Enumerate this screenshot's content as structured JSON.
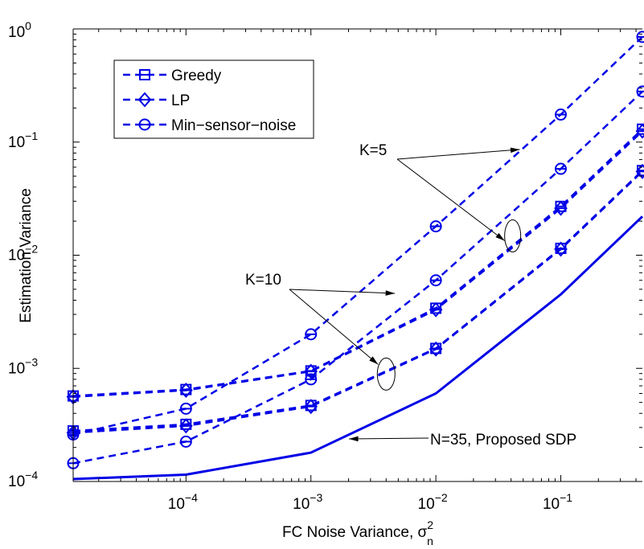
{
  "chart_data": {
    "type": "line",
    "xlabel": "FC Noise Variance, σ",
    "xlabel_sup": "2",
    "xlabel_sub": "n",
    "ylabel": "Estimation Variance",
    "x_scale": "log",
    "y_scale": "log",
    "xlim": [
      1.25e-05,
      0.45
    ],
    "ylim": [
      0.0001,
      1
    ],
    "x_ticks": [
      {
        "value": 0.0001,
        "base": "10",
        "exp": "−4"
      },
      {
        "value": 0.001,
        "base": "10",
        "exp": "−3"
      },
      {
        "value": 0.01,
        "base": "10",
        "exp": "−2"
      },
      {
        "value": 0.1,
        "base": "10",
        "exp": "−1"
      }
    ],
    "y_ticks": [
      {
        "value": 0.0001,
        "base": "10",
        "exp": "−4"
      },
      {
        "value": 0.001,
        "base": "10",
        "exp": "−3"
      },
      {
        "value": 0.01,
        "base": "10",
        "exp": "−2"
      },
      {
        "value": 0.1,
        "base": "10",
        "exp": "−1"
      },
      {
        "value": 1,
        "base": "10",
        "exp": "0"
      }
    ],
    "grid": false,
    "legend_position": "top-left",
    "legend": [
      {
        "label": "Greedy",
        "marker": "square"
      },
      {
        "label": "LP",
        "marker": "diamond"
      },
      {
        "label": "Min−sensor−noise",
        "marker": "circle"
      }
    ],
    "color": "#0000e6",
    "x": [
      1.25e-05,
      0.0001,
      0.001,
      0.01,
      0.1,
      0.45
    ],
    "series": [
      {
        "group": "K=5",
        "method": "Greedy",
        "marker": "square",
        "values": [
          0.00057,
          0.00065,
          0.00095,
          0.0034,
          0.027,
          0.13
        ]
      },
      {
        "group": "K=5",
        "method": "LP",
        "marker": "diamond",
        "values": [
          0.00056,
          0.00064,
          0.00094,
          0.0033,
          0.026,
          0.125
        ]
      },
      {
        "group": "K=5",
        "method": "Min-sensor-noise",
        "marker": "circle",
        "values": [
          0.00026,
          0.00044,
          0.002,
          0.018,
          0.175,
          0.85
        ]
      },
      {
        "group": "K=10",
        "method": "Greedy",
        "marker": "square",
        "values": [
          0.00028,
          0.00032,
          0.00047,
          0.0015,
          0.0115,
          0.056
        ]
      },
      {
        "group": "K=10",
        "method": "LP",
        "marker": "diamond",
        "values": [
          0.00027,
          0.00031,
          0.00046,
          0.00148,
          0.0113,
          0.055
        ]
      },
      {
        "group": "K=10",
        "method": "Min-sensor-noise",
        "marker": "circle",
        "values": [
          0.000145,
          0.000225,
          0.0008,
          0.006,
          0.058,
          0.28
        ]
      },
      {
        "group": "N=35",
        "method": "Proposed SDP",
        "marker": "none",
        "solid": true,
        "values": [
          0.000105,
          0.000115,
          0.00018,
          0.0006,
          0.0045,
          0.022
        ]
      }
    ],
    "annotations": [
      {
        "text": "K=5",
        "ellipse_at": {
          "x": 0.04,
          "y": 0.013
        },
        "targets": [
          {
            "x": 0.047,
            "y": 0.086
          },
          {
            "x": 0.04,
            "y": 0.013
          }
        ]
      },
      {
        "text": "K=10",
        "ellipse_at": {
          "x": 0.004,
          "y": 0.00095
        },
        "targets": [
          {
            "x": 0.0047,
            "y": 0.0046
          },
          {
            "x": 0.004,
            "y": 0.00095
          }
        ]
      },
      {
        "text": "N=35, Proposed SDP",
        "targets": [
          {
            "x": 0.0006,
            "y": 0.00025
          }
        ]
      }
    ]
  }
}
